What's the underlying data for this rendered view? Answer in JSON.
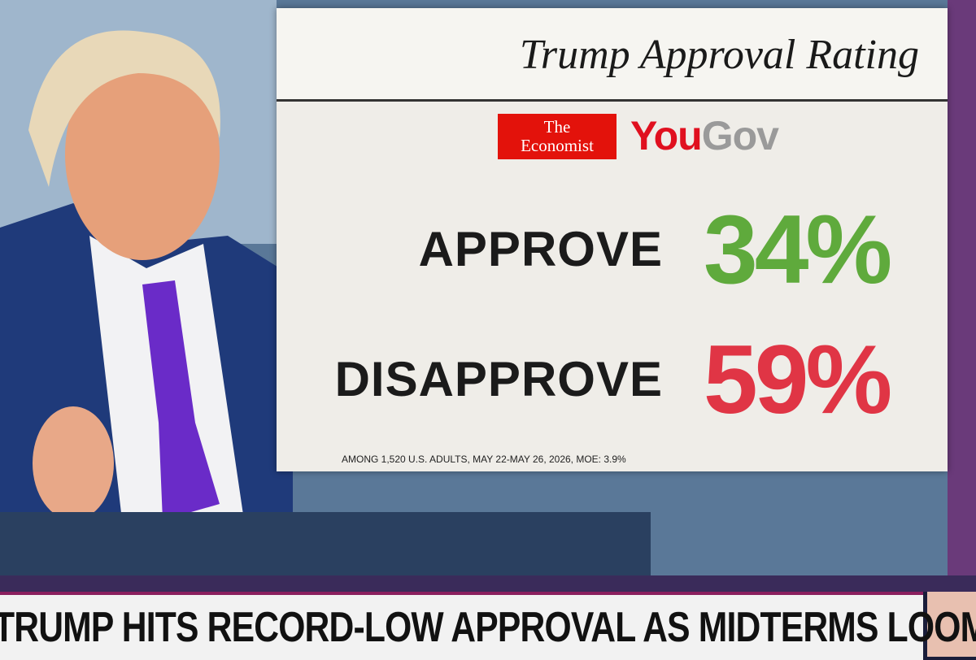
{
  "graphic": {
    "title": "Trump Approval Rating",
    "logos": {
      "economist_line1": "The",
      "economist_line2": "Economist",
      "yougov_you": "You",
      "yougov_gov": "Gov"
    },
    "rows": [
      {
        "label": "APPROVE",
        "value": "34%"
      },
      {
        "label": "DISAPPROVE",
        "value": "59%"
      }
    ],
    "footnote": "AMONG 1,520 U.S. ADULTS, MAY 22-MAY 26, 2026, MOE: 3.9%"
  },
  "ticker": {
    "headline": "TRUMP HITS RECORD-LOW APPROVAL AS MIDTERMS LOOM"
  }
}
